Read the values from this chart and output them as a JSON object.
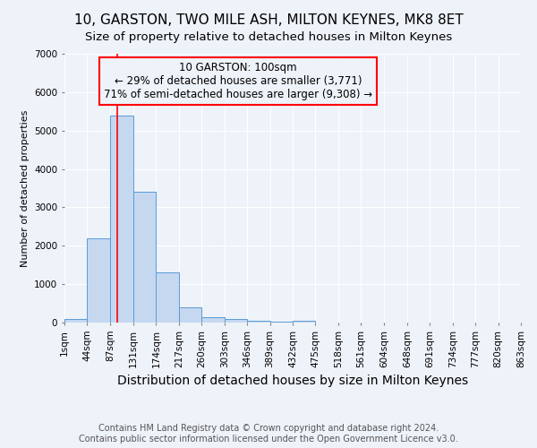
{
  "title": "10, GARSTON, TWO MILE ASH, MILTON KEYNES, MK8 8ET",
  "subtitle": "Size of property relative to detached houses in Milton Keynes",
  "xlabel": "Distribution of detached houses by size in Milton Keynes",
  "ylabel": "Number of detached properties",
  "footer_line1": "Contains HM Land Registry data © Crown copyright and database right 2024.",
  "footer_line2": "Contains public sector information licensed under the Open Government Licence v3.0.",
  "annotation_line1": "10 GARSTON: 100sqm",
  "annotation_line2": "← 29% of detached houses are smaller (3,771)",
  "annotation_line3": "71% of semi-detached houses are larger (9,308) →",
  "bar_edges": [
    1,
    44,
    87,
    131,
    174,
    217,
    260,
    303,
    346,
    389,
    432,
    475,
    518,
    561,
    604,
    648,
    691,
    734,
    777,
    820,
    863
  ],
  "bar_heights": [
    100,
    2200,
    5400,
    3400,
    1300,
    400,
    150,
    100,
    50,
    30,
    50,
    0,
    0,
    0,
    0,
    0,
    0,
    0,
    0,
    0
  ],
  "bar_color": "#c5d8f0",
  "bar_edge_color": "#5b9bd5",
  "red_line_x": 100,
  "ylim": [
    0,
    7000
  ],
  "yticks": [
    0,
    1000,
    2000,
    3000,
    4000,
    5000,
    6000,
    7000
  ],
  "tick_labels": [
    "1sqm",
    "44sqm",
    "87sqm",
    "131sqm",
    "174sqm",
    "217sqm",
    "260sqm",
    "303sqm",
    "346sqm",
    "389sqm",
    "432sqm",
    "475sqm",
    "518sqm",
    "561sqm",
    "604sqm",
    "648sqm",
    "691sqm",
    "734sqm",
    "777sqm",
    "820sqm",
    "863sqm"
  ],
  "background_color": "#eef2f9",
  "grid_color": "#ffffff",
  "title_fontsize": 11,
  "subtitle_fontsize": 9.5,
  "annotation_fontsize": 8.5,
  "ylabel_fontsize": 8,
  "xlabel_fontsize": 10,
  "tick_fontsize": 7.5,
  "footer_fontsize": 7
}
